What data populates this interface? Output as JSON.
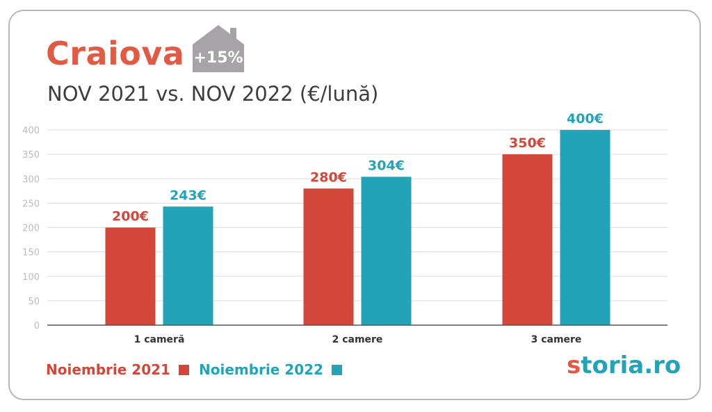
{
  "header": {
    "city": "Craiova",
    "badge": "+15%",
    "subtitle": "NOV 2021 vs. NOV 2022 (€/lună)"
  },
  "colors": {
    "series_2021": "#d3473a",
    "series_2022": "#22a3b7",
    "title": "#e15a43",
    "badge_house": "#a8a3a9"
  },
  "chart_data": {
    "type": "bar",
    "categories": [
      "1 cameră",
      "2 camere",
      "3 camere"
    ],
    "series": [
      {
        "name": "Noiembrie 2021",
        "values": [
          200,
          280,
          350
        ],
        "labels": [
          "200€",
          "280€",
          "350€"
        ]
      },
      {
        "name": "Noiembrie 2022",
        "values": [
          243,
          304,
          400
        ],
        "labels": [
          "243€",
          "304€",
          "400€"
        ]
      }
    ],
    "yticks": [
      "0",
      "50",
      "100",
      "150",
      "200",
      "250",
      "300",
      "350",
      "400"
    ],
    "ylim": [
      0,
      400
    ],
    "grid": true,
    "legend": "bottom-left"
  },
  "legend": {
    "item_2021": "Noiembrie 2021",
    "item_2022": "Noiembrie 2022"
  },
  "brand": {
    "s_letter": "s",
    "rest": "toria.ro"
  }
}
